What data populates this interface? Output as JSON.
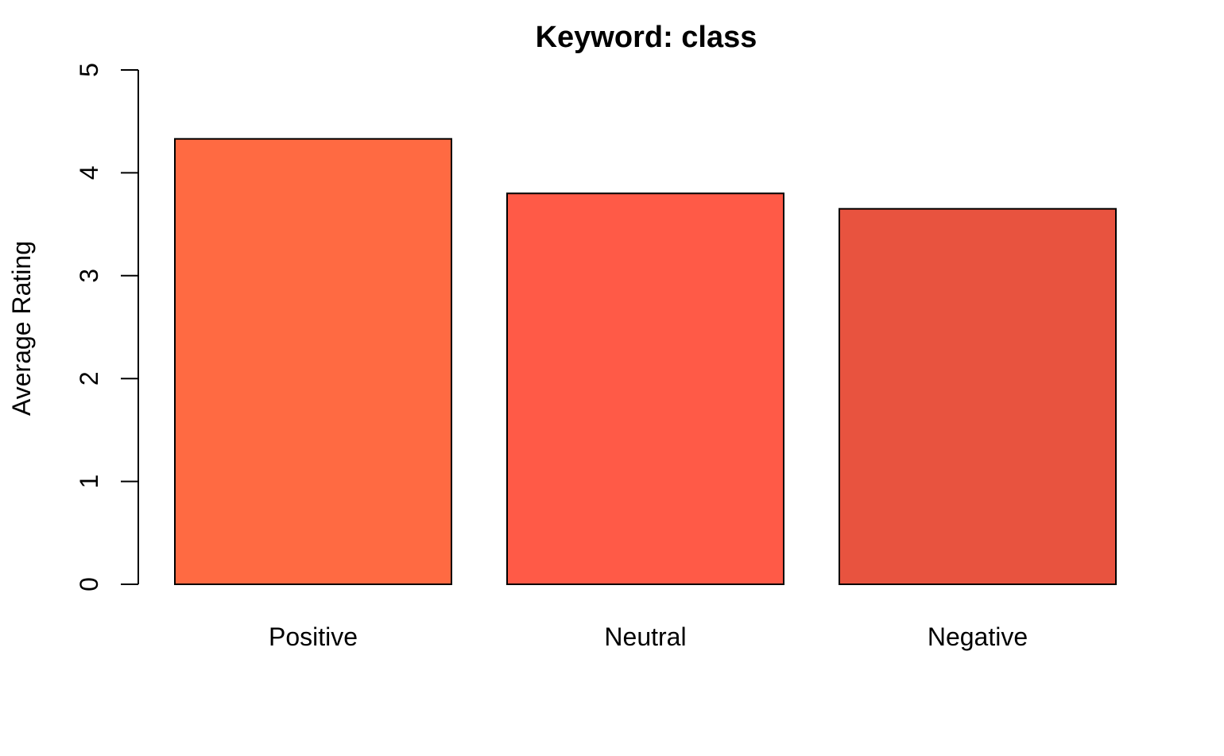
{
  "chart_data": {
    "type": "bar",
    "title": "Keyword: class",
    "xlabel": "",
    "ylabel": "Average Rating",
    "ylim": [
      0,
      5
    ],
    "yticks": [
      0,
      1,
      2,
      3,
      4,
      5
    ],
    "grid": false,
    "categories": [
      "Positive",
      "Neutral",
      "Negative"
    ],
    "values": [
      4.33,
      3.8,
      3.65
    ],
    "colors": [
      "#FF6A42",
      "#FF5A47",
      "#E8533F"
    ]
  }
}
